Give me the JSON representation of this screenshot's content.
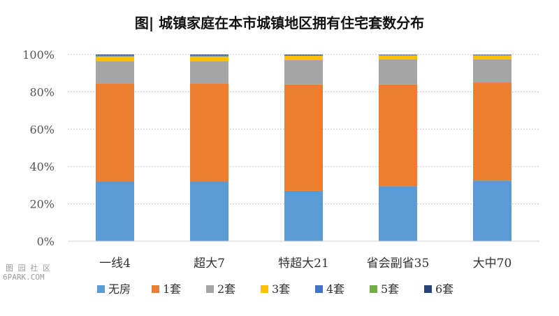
{
  "chart_data": {
    "type": "bar",
    "stacked": true,
    "title": "图| 城镇家庭在本市城镇地区拥有住宅套数分布",
    "xlabel": "",
    "ylabel": "",
    "ylim": [
      0,
      100
    ],
    "yticks": [
      "0%",
      "20%",
      "40%",
      "60%",
      "80%",
      "100%"
    ],
    "grid": true,
    "legend_position": "bottom",
    "categories": [
      "一线4",
      "超大7",
      "特超大21",
      "省会副省35",
      "大中70"
    ],
    "series": [
      {
        "name": "无房",
        "color": "#5B9BD5",
        "values": [
          32,
          32,
          27,
          29.5,
          32.5
        ]
      },
      {
        "name": "1套",
        "color": "#ED7D31",
        "values": [
          52.5,
          52.5,
          57,
          54.5,
          52.5
        ]
      },
      {
        "name": "2套",
        "color": "#A5A5A5",
        "values": [
          12,
          12,
          13,
          13.5,
          12.5
        ]
      },
      {
        "name": "3套",
        "color": "#FFC000",
        "values": [
          2.5,
          2.5,
          2.3,
          2,
          2
        ]
      },
      {
        "name": "4套",
        "color": "#4472C4",
        "values": [
          0.4,
          0.4,
          0.3,
          0.3,
          0.3
        ]
      },
      {
        "name": "5套",
        "color": "#70AD47",
        "values": [
          0.2,
          0.2,
          0.1,
          0.1,
          0.1
        ]
      },
      {
        "name": "6套",
        "color": "#264478",
        "values": [
          0.4,
          0.4,
          0.3,
          0.1,
          0.1
        ]
      }
    ]
  },
  "watermark": {
    "line1": "图 园 社 区",
    "line2": "6PARK.COM"
  }
}
